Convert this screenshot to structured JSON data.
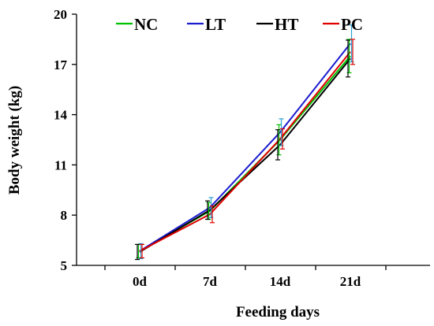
{
  "chart_data": {
    "type": "line",
    "categories": [
      "0d",
      "7d",
      "14d",
      "21d"
    ],
    "xlabel": "Feeding days",
    "ylabel": "Body weight (kg)",
    "ylim": [
      5,
      20
    ],
    "yticks": [
      "5",
      "8",
      "11",
      "14",
      "17",
      "20"
    ],
    "legend_position": "top",
    "series": [
      {
        "name": "NC",
        "color": "#00c000",
        "values": [
          5.85,
          8.25,
          12.5,
          17.5
        ],
        "errors": [
          0.4,
          0.5,
          0.9,
          1.0
        ]
      },
      {
        "name": "LT",
        "color": "#1c1ccf",
        "values": [
          5.85,
          8.45,
          12.95,
          18.25
        ],
        "errors": [
          0.45,
          0.6,
          0.8,
          1.1
        ]
      },
      {
        "name": "HT",
        "color": "#000000",
        "values": [
          5.8,
          8.3,
          12.2,
          17.35
        ],
        "errors": [
          0.45,
          0.55,
          0.9,
          1.1
        ]
      },
      {
        "name": "PC",
        "color": "#e00000",
        "values": [
          5.85,
          8.05,
          12.55,
          17.75
        ],
        "errors": [
          0.4,
          0.5,
          0.6,
          0.75
        ]
      }
    ],
    "error_bar_color": "#2aa0d0"
  }
}
